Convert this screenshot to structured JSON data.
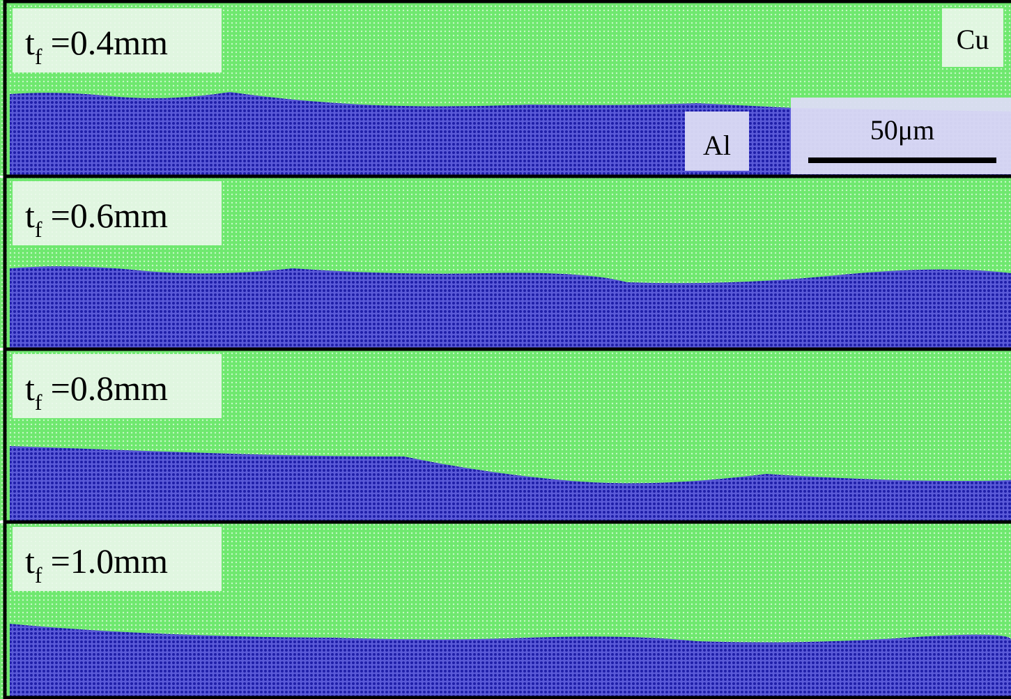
{
  "panels": [
    {
      "symbol": "t",
      "subscript": "f",
      "value": "=0.4mm"
    },
    {
      "symbol": "t",
      "subscript": "f",
      "value": "=0.6mm"
    },
    {
      "symbol": "t",
      "subscript": "f",
      "value": "=0.8mm"
    },
    {
      "symbol": "t",
      "subscript": "f",
      "value": "=1.0mm"
    }
  ],
  "annotations": {
    "top_material": "Cu",
    "bottom_material": "Al",
    "scale_bar": "50μm"
  }
}
